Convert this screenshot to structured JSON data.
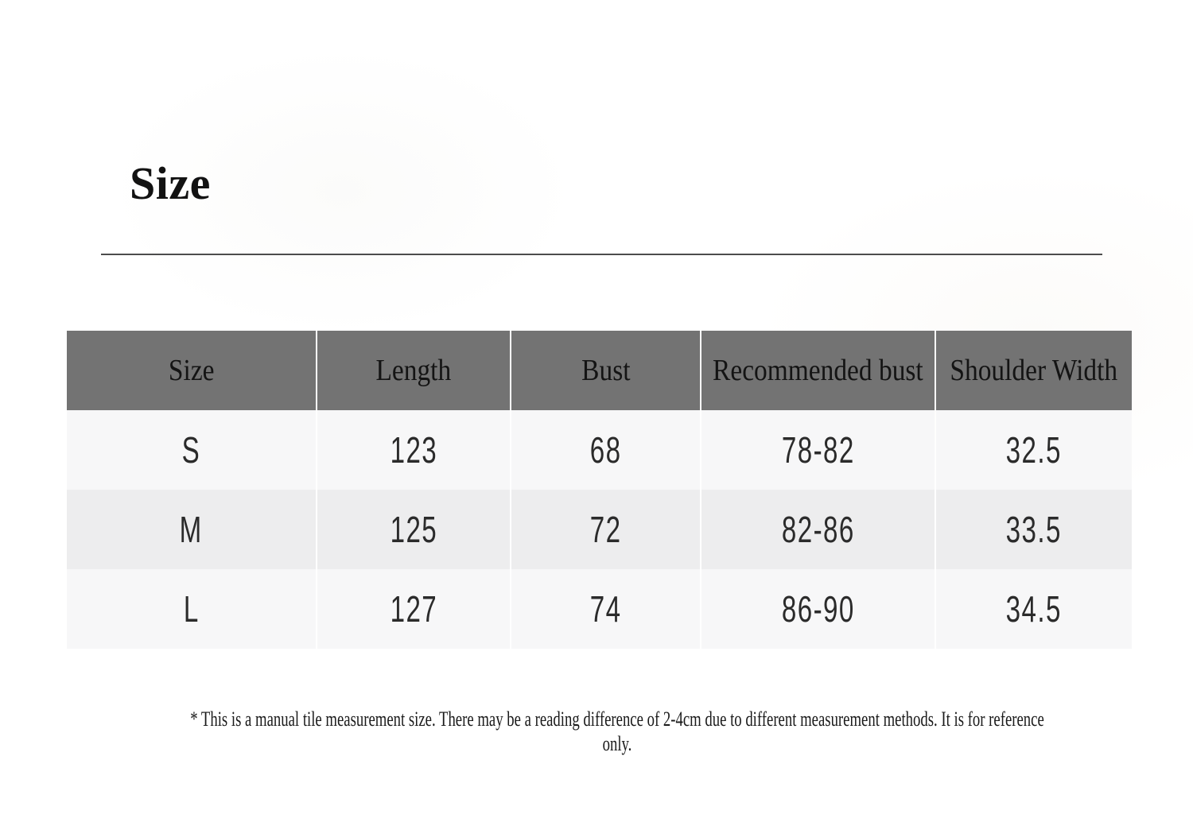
{
  "page": {
    "title": "Size"
  },
  "table": {
    "headers": [
      "Size",
      "Length",
      "Bust",
      "Recommended bust",
      "Shoulder Width"
    ],
    "rows": [
      [
        "S",
        "123",
        "68",
        "78-82",
        "32.5"
      ],
      [
        "M",
        "125",
        "72",
        "82-86",
        "33.5"
      ],
      [
        "L",
        "127",
        "74",
        "86-90",
        "34.5"
      ]
    ]
  },
  "footnote": "* This is a manual tile measurement size. There may be a reading difference of 2-4cm due to different measurement methods. It is for reference only.",
  "colors": {
    "header_bg": "#737373",
    "row_light": "#f7f7f8",
    "row_alt": "#ededee",
    "divider": "#4c4c4c",
    "header_text": "#141414",
    "body_text": "#2b2b2b",
    "page_bg": "#ffffff"
  }
}
